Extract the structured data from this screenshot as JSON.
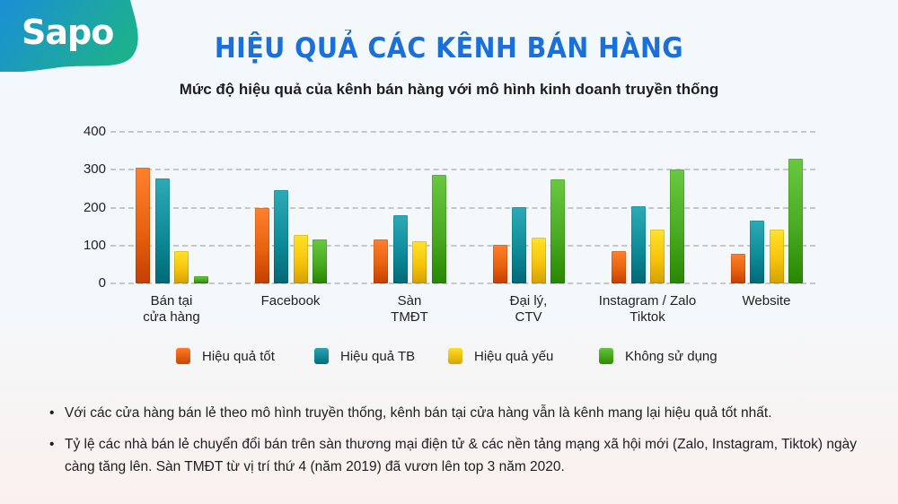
{
  "logo": {
    "text": "Sapo"
  },
  "header": {
    "title": "HIỆU QUẢ CÁC KÊNH BÁN HÀNG",
    "subtitle": "Mức độ hiệu quả của kênh bán hàng với mô hình kinh doanh truyền thống"
  },
  "colors": {
    "brand_blue": "#1a6fd8",
    "logo_gradient": [
      "#1b8fd6",
      "#1cb08e"
    ]
  },
  "chart_data": {
    "type": "bar",
    "title": "Mức độ hiệu quả của kênh bán hàng với mô hình kinh doanh truyền thống",
    "xlabel": "",
    "ylabel": "",
    "ylim": [
      0,
      400
    ],
    "yticks": [
      0,
      100,
      200,
      300,
      400
    ],
    "grid": true,
    "legend_position": "bottom",
    "categories": [
      "Bán tại cửa hàng",
      "Facebook",
      "Sàn TMĐT",
      "Đại lý, CTV",
      "Instagram / Zalo Tiktok",
      "Website"
    ],
    "category_lines": [
      [
        "Bán tại",
        "cửa hàng"
      ],
      [
        "Facebook"
      ],
      [
        "Sàn",
        "TMĐT"
      ],
      [
        "Đại lý,",
        "CTV"
      ],
      [
        "Instagram / Zalo",
        "Tiktok"
      ],
      [
        "Website"
      ]
    ],
    "series": [
      {
        "name": "Hiệu quả tốt",
        "color": "#e8620f",
        "values": [
          305,
          199,
          116,
          102,
          85,
          78
        ]
      },
      {
        "name": "Hiệu quả TB",
        "color": "#0e8c9a",
        "values": [
          277,
          246,
          180,
          201,
          203,
          166
        ]
      },
      {
        "name": "Hiệu quả yếu",
        "color": "#f7c40c",
        "values": [
          85,
          128,
          111,
          121,
          142,
          142
        ]
      },
      {
        "name": "Không sử dụng",
        "color": "#4aab22",
        "values": [
          19,
          116,
          286,
          275,
          300,
          329
        ]
      }
    ]
  },
  "notes": [
    "Với các cửa hàng bán lẻ theo mô hình truyền thống, kênh bán tại cửa hàng vẫn là kênh mang lại hiệu quả tốt nhất.",
    "Tỷ lệ các nhà bán lẻ chuyển đổi bán trên sàn thương mại điện tử & các nền tảng mạng xã hội mới (Zalo, Instagram, Tiktok) ngày càng tăng lên. Sàn TMĐT từ vị trí thứ 4 (năm 2019) đã vươn lên top 3 năm 2020."
  ]
}
